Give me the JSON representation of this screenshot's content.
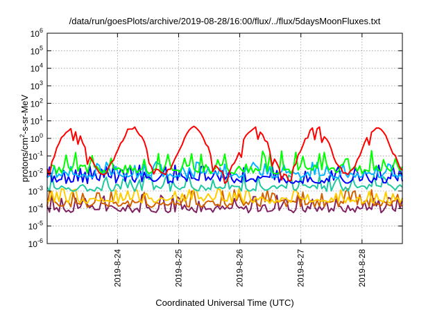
{
  "chart_data": {
    "type": "line",
    "title": "/data/run/goesPlots/archive/2019-08-28/16:00/flux/../flux/5daysMoonFluxes.txt",
    "xlabel": "Coordinated Universal Time (UTC)",
    "ylabel": "protons/cm2-s-sr-MeV",
    "yscale": "log",
    "ylim": [
      1e-06,
      1000000.0
    ],
    "xlim": [
      -1.15,
      4.66
    ],
    "x_ticks": [
      {
        "x": 0,
        "label": "2019-8-24"
      },
      {
        "x": 1,
        "label": "2019-8-25"
      },
      {
        "x": 2,
        "label": "2019-8-26"
      },
      {
        "x": 3,
        "label": "2019-8-27"
      },
      {
        "x": 4,
        "label": "2019-8-28"
      }
    ],
    "y_ticks": [
      {
        "base": "10",
        "exp": "-6",
        "value": 1e-06
      },
      {
        "base": "10",
        "exp": "-5",
        "value": 1e-05
      },
      {
        "base": "10",
        "exp": "-4",
        "value": 0.0001
      },
      {
        "base": "10",
        "exp": "-3",
        "value": 0.001
      },
      {
        "base": "10",
        "exp": "-2",
        "value": 0.01
      },
      {
        "base": "10",
        "exp": "-1",
        "value": 0.1
      },
      {
        "base": "10",
        "exp": "0",
        "value": 1
      },
      {
        "base": "10",
        "exp": "1",
        "value": 10
      },
      {
        "base": "10",
        "exp": "2",
        "value": 100
      },
      {
        "base": "10",
        "exp": "3",
        "value": 1000
      },
      {
        "base": "10",
        "exp": "4",
        "value": 10000
      },
      {
        "base": "10",
        "exp": "5",
        "value": 100000
      },
      {
        "base": "10",
        "exp": "6",
        "value": 1000000
      }
    ],
    "grid": true,
    "series": [
      {
        "color": "#ff0000",
        "baseline_log": -0.7,
        "amp_log": 1.3,
        "noise_log": 0.25,
        "period": 1.0,
        "phase": 0.25,
        "base_spike": 0
      },
      {
        "color": "#00ff00",
        "baseline_log": -1.85,
        "amp_log": 0.0,
        "noise_log": 0.55,
        "period": 1.0,
        "phase": 0,
        "base_spike": 1
      },
      {
        "color": "#00b4ff",
        "baseline_log": -2.15,
        "amp_log": 0.0,
        "noise_log": 0.4,
        "period": 1.0,
        "phase": 0,
        "base_spike": 1
      },
      {
        "color": "#0000ff",
        "baseline_log": -2.45,
        "amp_log": 0.0,
        "noise_log": 0.45,
        "period": 1.0,
        "phase": 0,
        "base_spike": 1
      },
      {
        "color": "#20c8a0",
        "baseline_log": -2.9,
        "amp_log": 0.0,
        "noise_log": 0.4,
        "period": 1.0,
        "phase": 0,
        "base_spike": 1
      },
      {
        "color": "#ffcc00",
        "baseline_log": -3.6,
        "amp_log": 0.0,
        "noise_log": 0.35,
        "period": 1.0,
        "phase": 0,
        "base_spike": 1
      },
      {
        "color": "#d06000",
        "baseline_log": -3.8,
        "amp_log": 0.0,
        "noise_log": 0.45,
        "period": 1.0,
        "phase": 0,
        "base_spike": 1
      },
      {
        "color": "#802060",
        "baseline_log": -4.1,
        "amp_log": 0.0,
        "noise_log": 0.45,
        "period": 1.0,
        "phase": 0,
        "base_spike": 1
      }
    ]
  }
}
